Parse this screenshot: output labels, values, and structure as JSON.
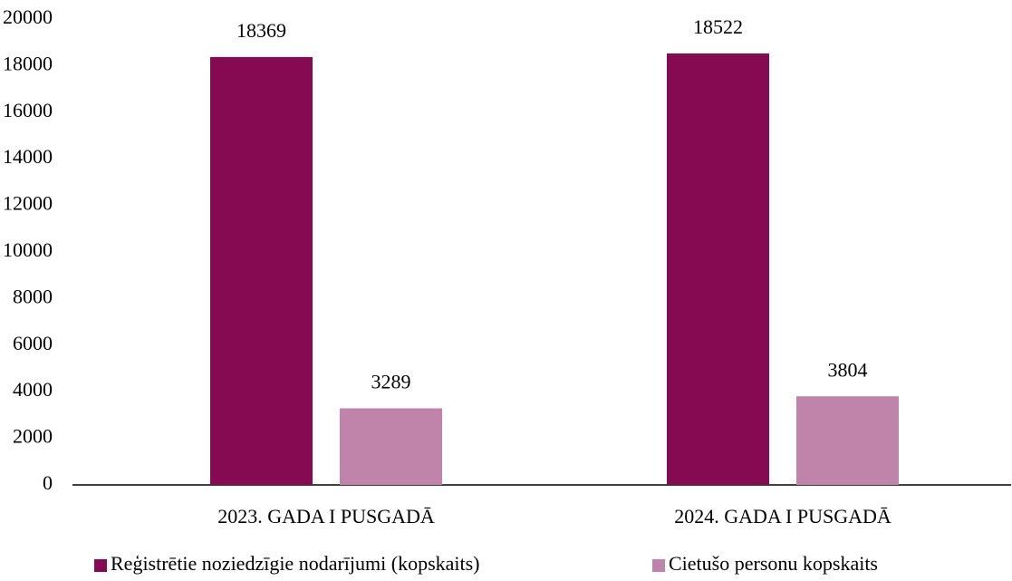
{
  "chart_data": {
    "type": "bar",
    "categories": [
      "2023. GADA I PUSGADĀ",
      "2024. GADA I PUSGADĀ"
    ],
    "series": [
      {
        "name": "Reģistrētie noziedzīgie nodarījumi (kopskaits)",
        "color": "#850a52",
        "values": [
          18369,
          18522
        ]
      },
      {
        "name": "Cietušo personu kopskaits",
        "color": "#c084ab",
        "values": [
          3289,
          3804
        ]
      }
    ],
    "ylim": [
      0,
      20000
    ],
    "yticks": [
      0,
      2000,
      4000,
      6000,
      8000,
      10000,
      12000,
      14000,
      16000,
      18000,
      20000
    ],
    "grid": false,
    "legend": "bottom"
  }
}
